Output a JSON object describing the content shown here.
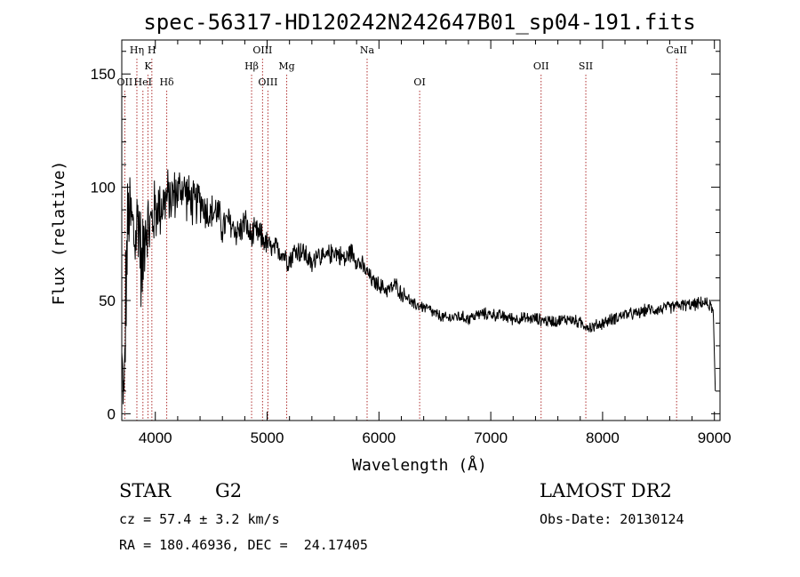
{
  "chart_data": {
    "type": "line",
    "title": "spec-56317-HD120242N242647B01_sp04-191.fits",
    "xlabel": "Wavelength (Å)",
    "ylabel": "Flux (relative)",
    "xlim": [
      3700,
      9050
    ],
    "ylim": [
      -3,
      165
    ],
    "x_ticks": [
      4000,
      5000,
      6000,
      7000,
      8000,
      9000
    ],
    "y_ticks": [
      0,
      50,
      100,
      150
    ],
    "grid": false,
    "line_color": "#000000",
    "marker_color": "#b03030",
    "spectrum_anchors": {
      "x": [
        3700,
        3720,
        3740,
        3760,
        3790,
        3820,
        3850,
        3880,
        3910,
        3940,
        3970,
        4000,
        4050,
        4100,
        4150,
        4200,
        4250,
        4300,
        4350,
        4400,
        4450,
        4500,
        4550,
        4600,
        4650,
        4700,
        4750,
        4800,
        4850,
        4900,
        4950,
        5000,
        5050,
        5100,
        5150,
        5200,
        5250,
        5300,
        5350,
        5400,
        5450,
        5500,
        5550,
        5600,
        5650,
        5700,
        5750,
        5800,
        5850,
        5900,
        5950,
        6000,
        6050,
        6100,
        6150,
        6200,
        6250,
        6300,
        6350,
        6400,
        6450,
        6500,
        6600,
        6700,
        6800,
        6900,
        7000,
        7100,
        7200,
        7300,
        7400,
        7500,
        7600,
        7700,
        7800,
        7900,
        8000,
        8100,
        8200,
        8300,
        8400,
        8500,
        8600,
        8700,
        8800,
        8900,
        8960,
        8990,
        9010
      ],
      "y": [
        25,
        5,
        60,
        88,
        85,
        75,
        90,
        60,
        88,
        80,
        85,
        90,
        92,
        95,
        96,
        98,
        100,
        95,
        92,
        95,
        90,
        88,
        90,
        82,
        85,
        82,
        80,
        85,
        78,
        80,
        78,
        75,
        72,
        73,
        70,
        68,
        72,
        72,
        70,
        65,
        72,
        68,
        70,
        72,
        70,
        68,
        72,
        68,
        65,
        62,
        58,
        57,
        55,
        55,
        57,
        53,
        52,
        48,
        48,
        47,
        46,
        44,
        42,
        43,
        42,
        44,
        44,
        43,
        42,
        42,
        42,
        41,
        41,
        42,
        40,
        38,
        40,
        42,
        44,
        44,
        46,
        46,
        47,
        48,
        48,
        49,
        48,
        45,
        5
      ],
      "noise": [
        10,
        15,
        35,
        25,
        22,
        24,
        25,
        24,
        22,
        20,
        18,
        16,
        15,
        14,
        13,
        12,
        12,
        12,
        11,
        11,
        10,
        10,
        9,
        9,
        8,
        8,
        8,
        7,
        7,
        7,
        7,
        6,
        6,
        6,
        6,
        6,
        6,
        6,
        6,
        5,
        5,
        5,
        5,
        5,
        5,
        5,
        5,
        5,
        5,
        4,
        4,
        4,
        4,
        4,
        4,
        4,
        3,
        3,
        3,
        3,
        3,
        3,
        3,
        3,
        3,
        3,
        3,
        3,
        3,
        3,
        3,
        3,
        3,
        3,
        3,
        3,
        3,
        3,
        3,
        3,
        3,
        3,
        3,
        3,
        3,
        3,
        3,
        2,
        2
      ]
    },
    "lines": [
      {
        "label": "Hη",
        "wavelength": 3835,
        "row": 0
      },
      {
        "label": "H",
        "wavelength": 3969,
        "row": 0
      },
      {
        "label": "K",
        "wavelength": 3934,
        "row": 1
      },
      {
        "label": "OII",
        "wavelength": 3727,
        "row": 2
      },
      {
        "label": "HeI",
        "wavelength": 3889,
        "row": 2
      },
      {
        "label": "Hδ",
        "wavelength": 4102,
        "row": 2
      },
      {
        "label": "OIII",
        "wavelength": 4959,
        "row": 0
      },
      {
        "label": "Hβ",
        "wavelength": 4861,
        "row": 1
      },
      {
        "label": "OIII",
        "wavelength": 5007,
        "row": 2
      },
      {
        "label": "Mg",
        "wavelength": 5175,
        "row": 1
      },
      {
        "label": "Na",
        "wavelength": 5894,
        "row": 0
      },
      {
        "label": "OI",
        "wavelength": 6364,
        "row": 2
      },
      {
        "label": "OII",
        "wavelength": 7450,
        "row": 1
      },
      {
        "label": "SII",
        "wavelength": 7850,
        "row": 1
      },
      {
        "label": "CaII",
        "wavelength": 8662,
        "row": 0
      }
    ]
  },
  "footer": {
    "object_class": "STAR",
    "subclass": "G2",
    "survey": "LAMOST DR2",
    "redshift": "cz = 57.4 ± 3.2 km/s",
    "obs_date": "Obs-Date: 20130124",
    "coords": "RA = 180.46936, DEC =  24.17405"
  }
}
